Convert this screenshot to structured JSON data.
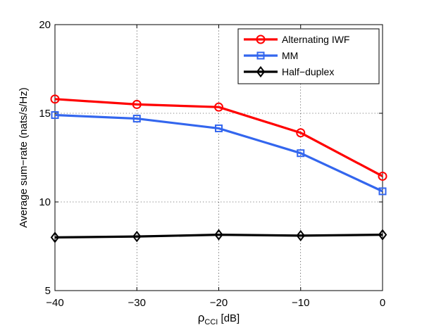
{
  "chart_data": {
    "type": "line",
    "xlabel_main": "ρ",
    "xlabel_sub": "CCI",
    "xlabel_unit": " [dB]",
    "ylabel": "Average sum−rate (nats/s/Hz)",
    "xlim": [
      -40,
      0
    ],
    "ylim": [
      5,
      20
    ],
    "xticks": [
      -40,
      -30,
      -20,
      -10,
      0
    ],
    "xtick_labels": [
      "−40",
      "−30",
      "−20",
      "−10",
      "0"
    ],
    "yticks": [
      5,
      10,
      15,
      20
    ],
    "ytick_labels": [
      "5",
      "10",
      "15",
      "20"
    ],
    "grid": true,
    "legend_position": "top-right",
    "x": [
      -40,
      -30,
      -20,
      -10,
      0
    ],
    "series": [
      {
        "name": "Alternating IWF",
        "values": [
          15.8,
          15.5,
          15.35,
          13.9,
          11.45
        ],
        "color": "#ff0000",
        "marker": "circle"
      },
      {
        "name": "MM",
        "values": [
          14.9,
          14.7,
          14.15,
          12.75,
          10.6
        ],
        "color": "#3366ee",
        "marker": "square"
      },
      {
        "name": "Half−duplex",
        "values": [
          8.0,
          8.05,
          8.15,
          8.1,
          8.15
        ],
        "color": "#000000",
        "marker": "diamond"
      }
    ]
  }
}
